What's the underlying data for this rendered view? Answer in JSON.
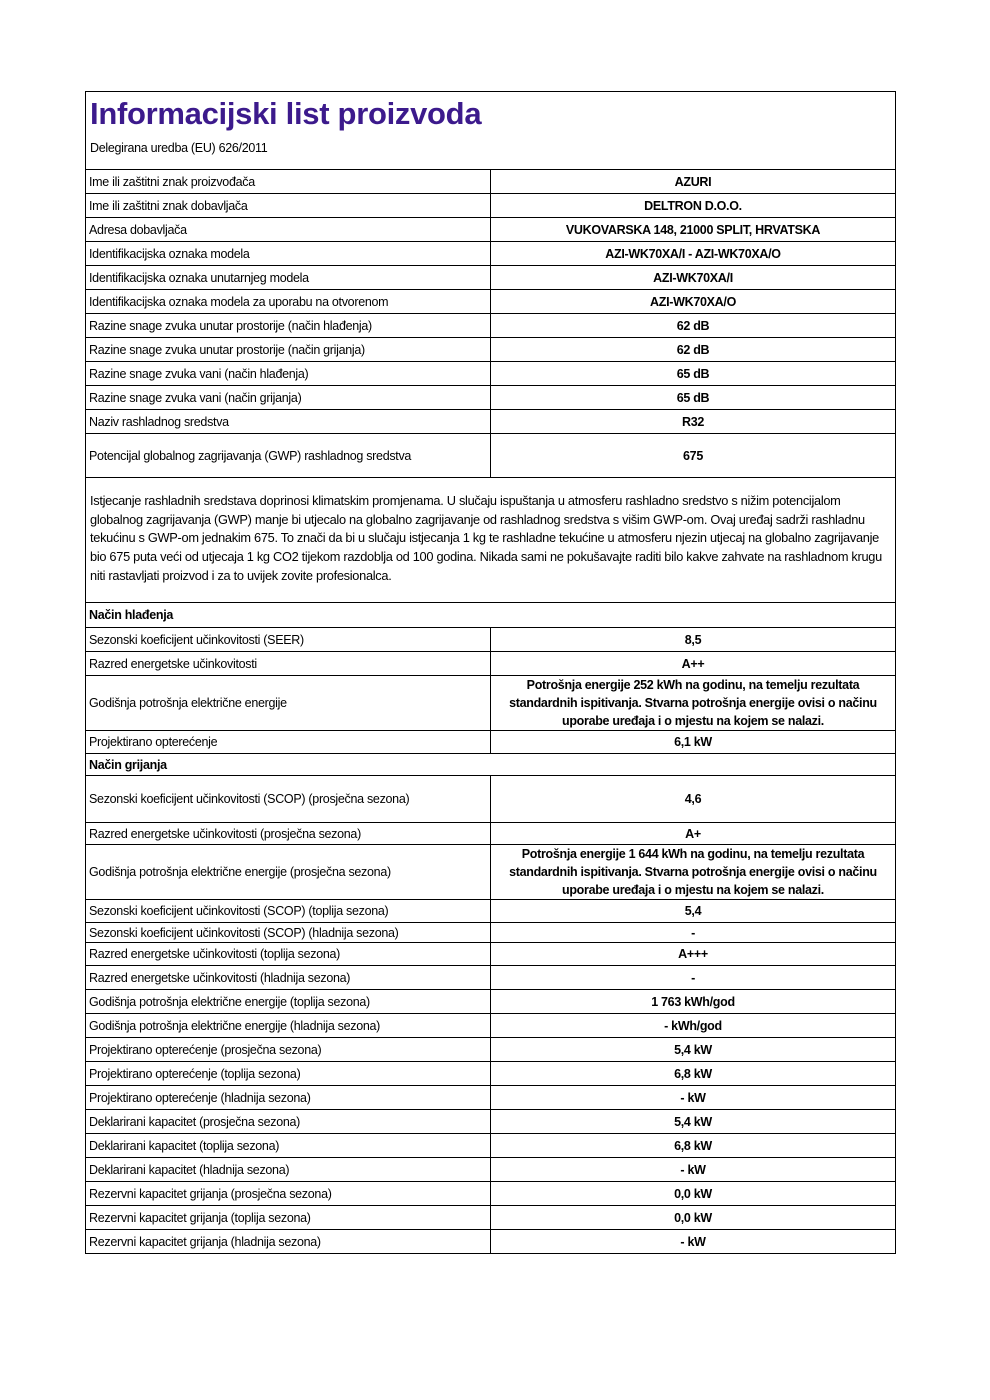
{
  "header": {
    "title": "Informacijski list proizvoda",
    "subtitle": "Delegirana uredba (EU) 626/2011"
  },
  "general": [
    {
      "label": "Ime ili zaštitni znak proizvođača",
      "value": "AZURI"
    },
    {
      "label": "Ime ili zaštitni znak dobavljača",
      "value": "DELTRON D.O.O."
    },
    {
      "label": "Adresa dobavljača",
      "value": "VUKOVARSKA 148, 21000 SPLIT, HRVATSKA"
    },
    {
      "label": "Identifikacijska oznaka modela",
      "value": "AZI-WK70XA/I - AZI-WK70XA/O"
    },
    {
      "label": "Identifikacijska oznaka unutarnjeg modela",
      "value": "AZI-WK70XA/I"
    },
    {
      "label": "Identifikacijska oznaka modela za uporabu na otvorenom",
      "value": "AZI-WK70XA/O"
    },
    {
      "label": "Razine snage zvuka unutar prostorije (način hlađenja)",
      "value": "62 dB"
    },
    {
      "label": "Razine snage zvuka unutar prostorije (način grijanja)",
      "value": "62 dB"
    },
    {
      "label": "Razine snage zvuka vani (način hlađenja)",
      "value": "65 dB"
    },
    {
      "label": "Razine snage zvuka vani (način grijanja)",
      "value": "65 dB"
    },
    {
      "label": "Naziv rashladnog sredstva",
      "value": "R32"
    },
    {
      "label": "Potencijal globalnog zagrijavanja (GWP) rashladnog sredstva",
      "value": "675"
    }
  ],
  "notice": "Istjecanje rashladnih sredstava doprinosi klimatskim promjenama. U slučaju ispuštanja u atmosferu rashladno sredstvo s nižim potencijalom globalnog zagrijavanja (GWP) manje bi utjecalo na globalno zagrijavanje od rashladnog sredstva s višim GWP-om. Ovaj uređaj sadrži rashladnu tekućinu s GWP-om jednakim 675. To znači da bi u slučaju istjecanja 1 kg te rashladne tekućine u atmosferu njezin utjecaj na globalno zagrijavanje bio 675 puta veći od utjecaja 1 kg CO2 tijekom razdoblja od 100 godina. Nikada sami ne pokušavajte raditi bilo kakve zahvate na rashladnom krugu niti rastavljati proizvod i za to uvijek zovite profesionalca.",
  "cooling": {
    "title": "Način hlađenja",
    "rows": [
      {
        "label": "Sezonski koeficijent učinkovitosti (SEER)",
        "value": "8,5"
      },
      {
        "label": "Razred energetske učinkovitosti",
        "value": "A++"
      },
      {
        "label": "Godišnja potrošnja električne energije",
        "value": "Potrošnja energije 252 kWh na godinu, na temelju rezultata standardnih ispitivanja. Stvarna potrošnja energije ovisi o načinu uporabe uređaja i o mjestu na kojem se nalazi."
      },
      {
        "label": "Projektirano opterećenje",
        "value": "6,1 kW"
      }
    ]
  },
  "heating": {
    "title": "Način grijanja",
    "rows": [
      {
        "label": "Sezonski koeficijent učinkovitosti (SCOP) (prosječna sezona)",
        "value": "4,6"
      },
      {
        "label": "Razred energetske učinkovitosti (prosječna sezona)",
        "value": "A+"
      },
      {
        "label": "Godišnja potrošnja električne energije (prosječna sezona)",
        "value": "Potrošnja energije 1 644 kWh na godinu, na temelju rezultata standardnih ispitivanja. Stvarna potrošnja energije ovisi o načinu uporabe uređaja i o mjestu na kojem se nalazi."
      },
      {
        "label": "Sezonski koeficijent učinkovitosti (SCOP) (toplija sezona)",
        "value": "5,4"
      },
      {
        "label": "Sezonski koeficijent učinkovitosti (SCOP) (hladnija sezona)",
        "value": "-"
      },
      {
        "label": "Razred energetske učinkovitosti (toplija sezona)",
        "value": "A+++"
      },
      {
        "label": "Razred energetske učinkovitosti (hladnija sezona)",
        "value": "-"
      },
      {
        "label": "Godišnja potrošnja električne energije (toplija sezona)",
        "value": "1 763 kWh/god"
      },
      {
        "label": "Godišnja potrošnja električne energije (hladnija sezona)",
        "value": "- kWh/god"
      },
      {
        "label": "Projektirano opterećenje (prosječna sezona)",
        "value": "5,4 kW"
      },
      {
        "label": "Projektirano opterećenje (toplija sezona)",
        "value": "6,8 kW"
      },
      {
        "label": "Projektirano opterećenje (hladnija sezona)",
        "value": "- kW"
      },
      {
        "label": "Deklarirani kapacitet (prosječna sezona)",
        "value": "5,4 kW"
      },
      {
        "label": "Deklarirani kapacitet (toplija sezona)",
        "value": "6,8 kW"
      },
      {
        "label": "Deklarirani kapacitet (hladnija sezona)",
        "value": "- kW"
      },
      {
        "label": "Rezervni kapacitet grijanja (prosječna sezona)",
        "value": "0,0 kW"
      },
      {
        "label": "Rezervni kapacitet grijanja (toplija sezona)",
        "value": "0,0 kW"
      },
      {
        "label": "Rezervni kapacitet grijanja (hladnija sezona)",
        "value": "- kW"
      }
    ]
  }
}
